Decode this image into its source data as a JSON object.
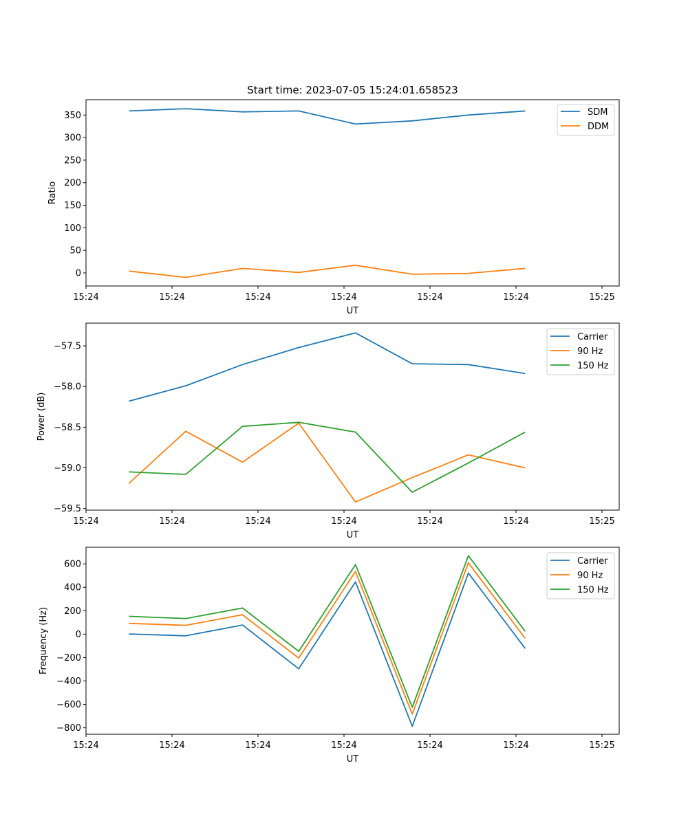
{
  "colors": {
    "blue": "#1f77b4",
    "orange": "#ff7f0e",
    "green": "#2ca02c"
  },
  "chart_data": [
    {
      "type": "line",
      "title": "Start time: 2023-07-05 15:24:01.658523",
      "xlabel": "UT",
      "ylabel": "Ratio",
      "xlim": [
        0,
        9.3
      ],
      "ylim": [
        -29,
        384
      ],
      "x": [
        0.75,
        1.74,
        2.73,
        3.71,
        4.7,
        5.69,
        6.67,
        7.66
      ],
      "xticks": [
        {
          "x": 0,
          "label": "15:24"
        },
        {
          "x": 1.5,
          "label": "15:24"
        },
        {
          "x": 3,
          "label": "15:24"
        },
        {
          "x": 4.5,
          "label": "15:24"
        },
        {
          "x": 6,
          "label": "15:24"
        },
        {
          "x": 7.5,
          "label": "15:24"
        },
        {
          "x": 9,
          "label": "15:25"
        }
      ],
      "yticks": [
        0,
        50,
        100,
        150,
        200,
        250,
        300,
        350
      ],
      "legend": "top-right",
      "series": [
        {
          "name": "SDM",
          "color": "blue",
          "values": [
            359,
            364,
            357,
            359,
            330,
            337,
            350,
            359
          ]
        },
        {
          "name": "DDM",
          "color": "orange",
          "values": [
            4,
            -10,
            10,
            1,
            17,
            -3,
            -1,
            10
          ]
        }
      ]
    },
    {
      "type": "line",
      "title": "",
      "xlabel": "UT",
      "ylabel": "Power (dB)",
      "xlim": [
        0,
        9.3
      ],
      "ylim": [
        -59.52,
        -57.22
      ],
      "x": [
        0.75,
        1.74,
        2.73,
        3.71,
        4.7,
        5.69,
        6.67,
        7.66
      ],
      "xticks": [
        {
          "x": 0,
          "label": "15:24"
        },
        {
          "x": 1.5,
          "label": "15:24"
        },
        {
          "x": 3,
          "label": "15:24"
        },
        {
          "x": 4.5,
          "label": "15:24"
        },
        {
          "x": 6,
          "label": "15:24"
        },
        {
          "x": 7.5,
          "label": "15:24"
        },
        {
          "x": 9,
          "label": "15:25"
        }
      ],
      "yticks": [
        -57.5,
        -58.0,
        -58.5,
        -59.0,
        -59.5
      ],
      "ytick_labels": [
        "−57.5",
        "−58.0",
        "−58.5",
        "−59.0",
        "−59.5"
      ],
      "legend": "top-right",
      "series": [
        {
          "name": "Carrier",
          "color": "blue",
          "values": [
            -58.18,
            -57.99,
            -57.73,
            -57.52,
            -57.34,
            -57.72,
            -57.73,
            -57.84
          ]
        },
        {
          "name": "90 Hz",
          "color": "orange",
          "values": [
            -59.19,
            -58.55,
            -58.93,
            -58.45,
            -59.42,
            -59.12,
            -58.84,
            -59.0
          ]
        },
        {
          "name": "150 Hz",
          "color": "green",
          "values": [
            -59.05,
            -59.08,
            -58.49,
            -58.44,
            -58.56,
            -59.3,
            -58.94,
            -58.56
          ]
        }
      ]
    },
    {
      "type": "line",
      "title": "",
      "xlabel": "UT",
      "ylabel": "Frequency (Hz)",
      "xlim": [
        0,
        9.3
      ],
      "ylim": [
        -855,
        742
      ],
      "x": [
        0.75,
        1.74,
        2.73,
        3.71,
        4.7,
        5.69,
        6.67,
        7.66
      ],
      "xticks": [
        {
          "x": 0,
          "label": "15:24"
        },
        {
          "x": 1.5,
          "label": "15:24"
        },
        {
          "x": 3,
          "label": "15:24"
        },
        {
          "x": 4.5,
          "label": "15:24"
        },
        {
          "x": 6,
          "label": "15:24"
        },
        {
          "x": 7.5,
          "label": "15:24"
        },
        {
          "x": 9,
          "label": "15:25"
        }
      ],
      "yticks": [
        600,
        400,
        200,
        0,
        -200,
        -400,
        -600,
        -800
      ],
      "ytick_labels": [
        "600",
        "400",
        "200",
        "0",
        "−200",
        "−400",
        "−600",
        "−800"
      ],
      "legend": "top-right",
      "series": [
        {
          "name": "Carrier",
          "color": "blue",
          "values": [
            1,
            -14,
            78,
            -296,
            446,
            -787,
            521,
            -122
          ]
        },
        {
          "name": "90 Hz",
          "color": "orange",
          "values": [
            92,
            75,
            166,
            -204,
            535,
            -683,
            609,
            -36
          ]
        },
        {
          "name": "150 Hz",
          "color": "green",
          "values": [
            152,
            133,
            223,
            -147,
            594,
            -625,
            670,
            24
          ]
        }
      ]
    }
  ]
}
